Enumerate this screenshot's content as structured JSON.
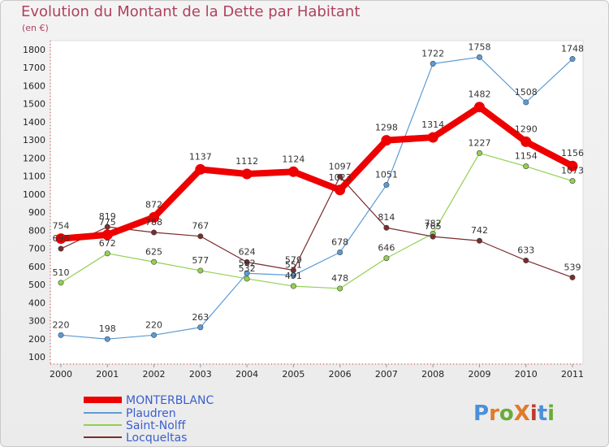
{
  "chart_data": {
    "type": "line",
    "title": "Evolution du Montant de la Dette par Habitant",
    "subtitle": "(en €)",
    "xlabel": "",
    "ylabel": "",
    "ylim": [
      100,
      1800
    ],
    "yticks": [
      100,
      200,
      300,
      400,
      500,
      600,
      700,
      800,
      900,
      1000,
      1100,
      1200,
      1300,
      1400,
      1500,
      1600,
      1700,
      1800
    ],
    "x": [
      "2000",
      "2001",
      "2002",
      "2003",
      "2004",
      "2005",
      "2006",
      "2007",
      "2008",
      "2009",
      "2010",
      "2011"
    ],
    "grid": false,
    "legend_position": "bottom-left",
    "series": [
      {
        "name": "MONTERBLANC",
        "color": "#ee0000",
        "values": [
          754,
          775,
          872,
          1137,
          1112,
          1124,
          1023,
          1298,
          1314,
          1482,
          1290,
          1156
        ]
      },
      {
        "name": "Plaudren",
        "color": "#5b9bd5",
        "values": [
          220,
          198,
          220,
          263,
          562,
          551,
          678,
          1051,
          1722,
          1758,
          1508,
          1748
        ]
      },
      {
        "name": "Saint-Nolff",
        "color": "#92d050",
        "values": [
          510,
          672,
          625,
          577,
          532,
          491,
          478,
          646,
          782,
          1227,
          1154,
          1073
        ]
      },
      {
        "name": "Locqueltas",
        "color": "#7b2c2c",
        "values": [
          698,
          819,
          788,
          767,
          624,
          579,
          1097,
          814,
          765,
          742,
          633,
          539
        ]
      }
    ]
  },
  "brand": {
    "text": "ProXiti"
  }
}
